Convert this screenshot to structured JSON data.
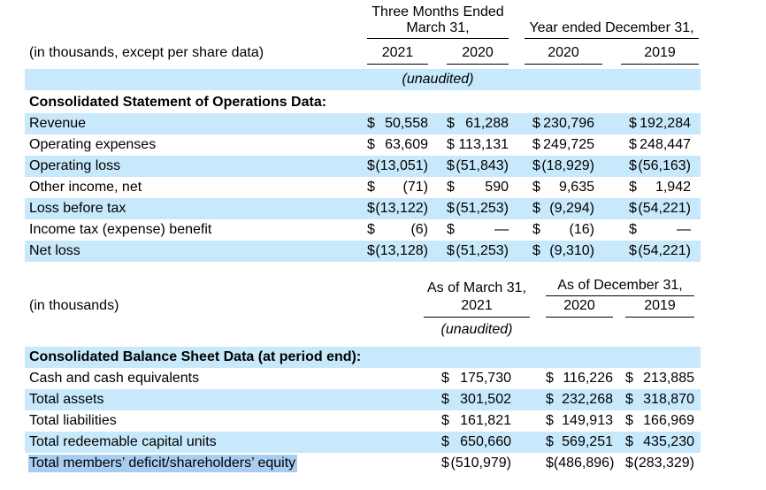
{
  "colors": {
    "stripe_blue": "#c7e9fb",
    "selection_blue": "#a9cdf1",
    "text": "#000000",
    "background": "#ffffff"
  },
  "operations_table": {
    "group1_line1": "Three Months Ended",
    "group1_line2": "March 31,",
    "group2": "Year ended December 31,",
    "row_header_label": "(in thousands, except per share data)",
    "years": [
      "2021",
      "2020",
      "2020",
      "2019"
    ],
    "unaudited": "(unaudited)",
    "section": "Consolidated Statement of Operations Data:",
    "rows": [
      {
        "label": "Revenue",
        "v": [
          [
            "$",
            "50,558"
          ],
          [
            "$",
            "61,288"
          ],
          [
            "$",
            "230,796"
          ],
          [
            "$",
            "192,284"
          ]
        ]
      },
      {
        "label": "Operating expenses",
        "v": [
          [
            "$",
            "63,609"
          ],
          [
            "$",
            "113,131"
          ],
          [
            "$",
            "249,725"
          ],
          [
            "$",
            "248,447"
          ]
        ]
      },
      {
        "label": "Operating loss",
        "v": [
          [
            "$",
            "(13,051)"
          ],
          [
            "$",
            "(51,843)"
          ],
          [
            "$",
            "(18,929)"
          ],
          [
            "$",
            "(56,163)"
          ]
        ]
      },
      {
        "label": "Other income, net",
        "v": [
          [
            "$",
            "(71)"
          ],
          [
            "$",
            "590"
          ],
          [
            "$",
            "9,635"
          ],
          [
            "$",
            "1,942"
          ]
        ]
      },
      {
        "label": "Loss before tax",
        "v": [
          [
            "$",
            "(13,122)"
          ],
          [
            "$",
            "(51,253)"
          ],
          [
            "$",
            "(9,294)"
          ],
          [
            "$",
            "(54,221)"
          ]
        ]
      },
      {
        "label": "Income tax (expense) benefit",
        "v": [
          [
            "$",
            "(6)"
          ],
          [
            "$",
            "—"
          ],
          [
            "$",
            "(16)"
          ],
          [
            "$",
            "—"
          ]
        ]
      },
      {
        "label": "Net loss",
        "v": [
          [
            "$",
            "(13,128)"
          ],
          [
            "$",
            "(51,253)"
          ],
          [
            "$",
            "(9,310)"
          ],
          [
            "$",
            "(54,221)"
          ]
        ]
      }
    ]
  },
  "balance_table": {
    "col1_line1": "As of March 31,",
    "col1_line2": "2021",
    "group2": "As of December 31,",
    "row_header_label": "(in thousands)",
    "years": [
      "2020",
      "2019"
    ],
    "unaudited": "(unaudited)",
    "section": "Consolidated Balance Sheet Data (at period end):",
    "rows": [
      {
        "label": "Cash and cash equivalents",
        "v": [
          [
            "$",
            "175,730"
          ],
          [
            "$",
            "116,226"
          ],
          [
            "$",
            "213,885"
          ]
        ]
      },
      {
        "label": "Total assets",
        "v": [
          [
            "$",
            "301,502"
          ],
          [
            "$",
            "232,268"
          ],
          [
            "$",
            "318,870"
          ]
        ]
      },
      {
        "label": "Total liabilities",
        "v": [
          [
            "$",
            "161,821"
          ],
          [
            "$",
            "149,913"
          ],
          [
            "$",
            "166,969"
          ]
        ]
      },
      {
        "label": "Total redeemable capital units",
        "v": [
          [
            "$",
            "650,660"
          ],
          [
            "$",
            "569,251"
          ],
          [
            "$",
            "435,230"
          ]
        ]
      },
      {
        "label": "Total members’ deficit/shareholders’ equity",
        "v": [
          [
            "$",
            "(510,979)"
          ],
          [
            "$",
            "(486,896)"
          ],
          [
            "$",
            "(283,329)"
          ]
        ]
      }
    ]
  }
}
